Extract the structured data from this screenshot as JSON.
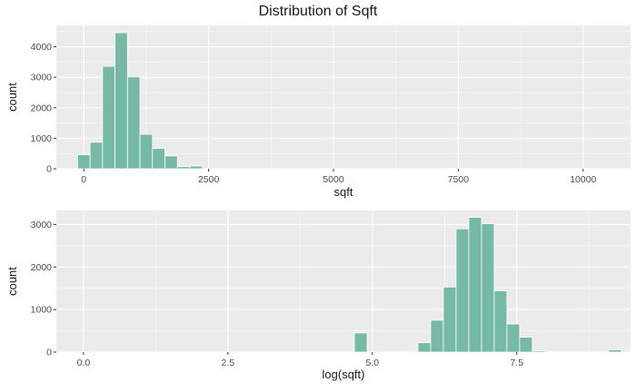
{
  "figure": {
    "title": "Distribution of Sqft"
  },
  "colors": {
    "bar_fill": "#76b9a5",
    "panel_bg": "#ebebeb"
  },
  "chart_data": [
    {
      "type": "bar",
      "xlabel": "sqft",
      "ylabel": "count",
      "xlim": [
        -550,
        10950
      ],
      "ylim": [
        0,
        4700
      ],
      "x_ticks": [
        0,
        2500,
        5000,
        7500,
        10000
      ],
      "y_ticks": [
        0,
        1000,
        2000,
        3000,
        4000
      ],
      "grid": true,
      "bin_width": 250,
      "bins": [
        {
          "x": 0,
          "value": 460
        },
        {
          "x": 250,
          "value": 870
        },
        {
          "x": 500,
          "value": 3360
        },
        {
          "x": 750,
          "value": 4460
        },
        {
          "x": 1000,
          "value": 3010
        },
        {
          "x": 1250,
          "value": 1130
        },
        {
          "x": 1500,
          "value": 670
        },
        {
          "x": 1750,
          "value": 420
        },
        {
          "x": 2000,
          "value": 70
        },
        {
          "x": 2250,
          "value": 90
        },
        {
          "x": 10000,
          "value": 10
        }
      ]
    },
    {
      "type": "bar",
      "xlabel": "log(sqft)",
      "ylabel": "count",
      "xlim": [
        -0.47,
        9.47
      ],
      "ylim": [
        0,
        3330
      ],
      "x_ticks": [
        0.0,
        2.5,
        5.0,
        7.5
      ],
      "y_ticks": [
        0,
        1000,
        2000,
        3000
      ],
      "grid": true,
      "bin_width": 0.22,
      "bins": [
        {
          "x": 4.8,
          "value": 450
        },
        {
          "x": 5.68,
          "value": 20
        },
        {
          "x": 5.9,
          "value": 220
        },
        {
          "x": 6.12,
          "value": 750
        },
        {
          "x": 6.34,
          "value": 1530
        },
        {
          "x": 6.56,
          "value": 2900
        },
        {
          "x": 6.78,
          "value": 3170
        },
        {
          "x": 7.0,
          "value": 3020
        },
        {
          "x": 7.22,
          "value": 1440
        },
        {
          "x": 7.44,
          "value": 660
        },
        {
          "x": 7.66,
          "value": 350
        },
        {
          "x": 7.88,
          "value": 30
        },
        {
          "x": 9.2,
          "value": 55
        }
      ]
    }
  ]
}
